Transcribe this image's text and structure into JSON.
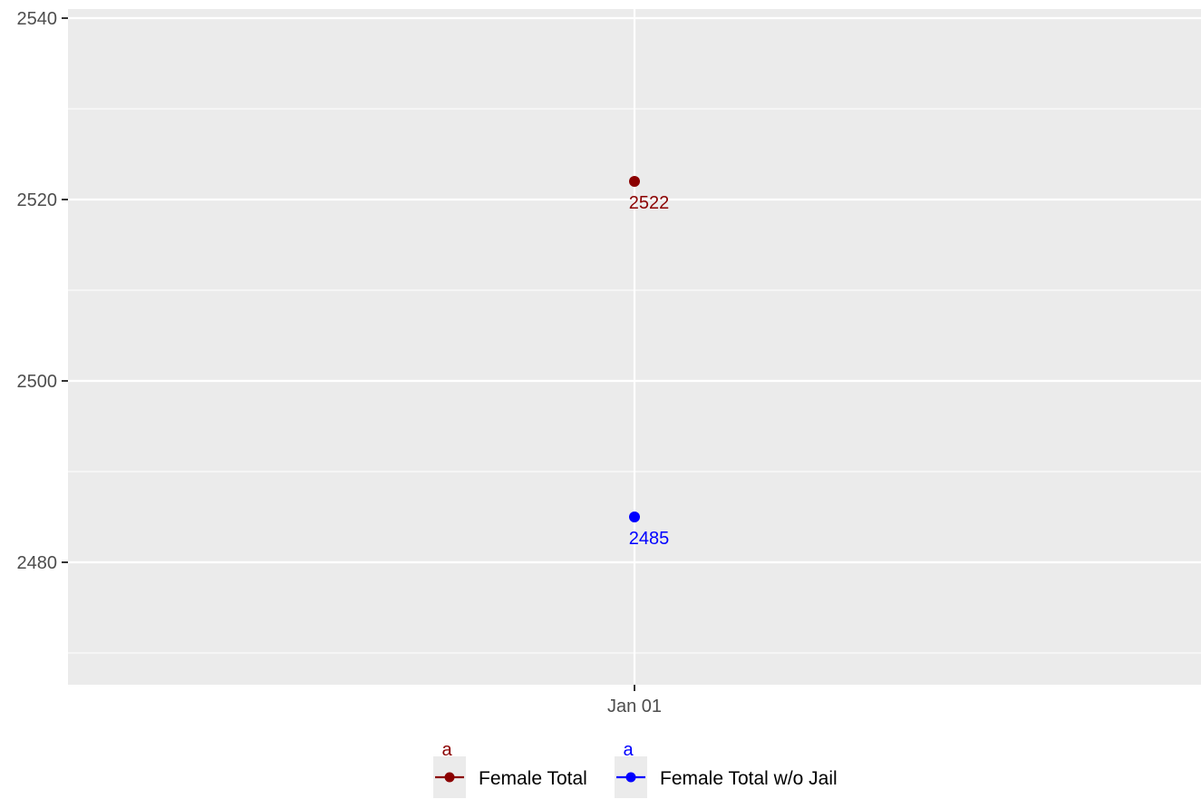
{
  "chart_data": {
    "type": "line",
    "x": [
      "Jan 01"
    ],
    "ylim": [
      2466.5,
      2541
    ],
    "yticks": [
      2480,
      2500,
      2520,
      2540
    ],
    "y_minor_ticks": [
      2470,
      2490,
      2510,
      2530
    ],
    "series": [
      {
        "name": "Female Total",
        "values": [
          2522
        ],
        "color": "#8b0000",
        "data_labels": [
          "2522"
        ]
      },
      {
        "name": "Female Total w/o Jail",
        "values": [
          2485
        ],
        "color": "#0000ff",
        "data_labels": [
          "2485"
        ]
      }
    ],
    "legend_key_letters": [
      "a",
      "a"
    ],
    "grid": true,
    "legend_position": "bottom",
    "panel_background": "#ebebeb",
    "grid_color": "#ffffff"
  }
}
